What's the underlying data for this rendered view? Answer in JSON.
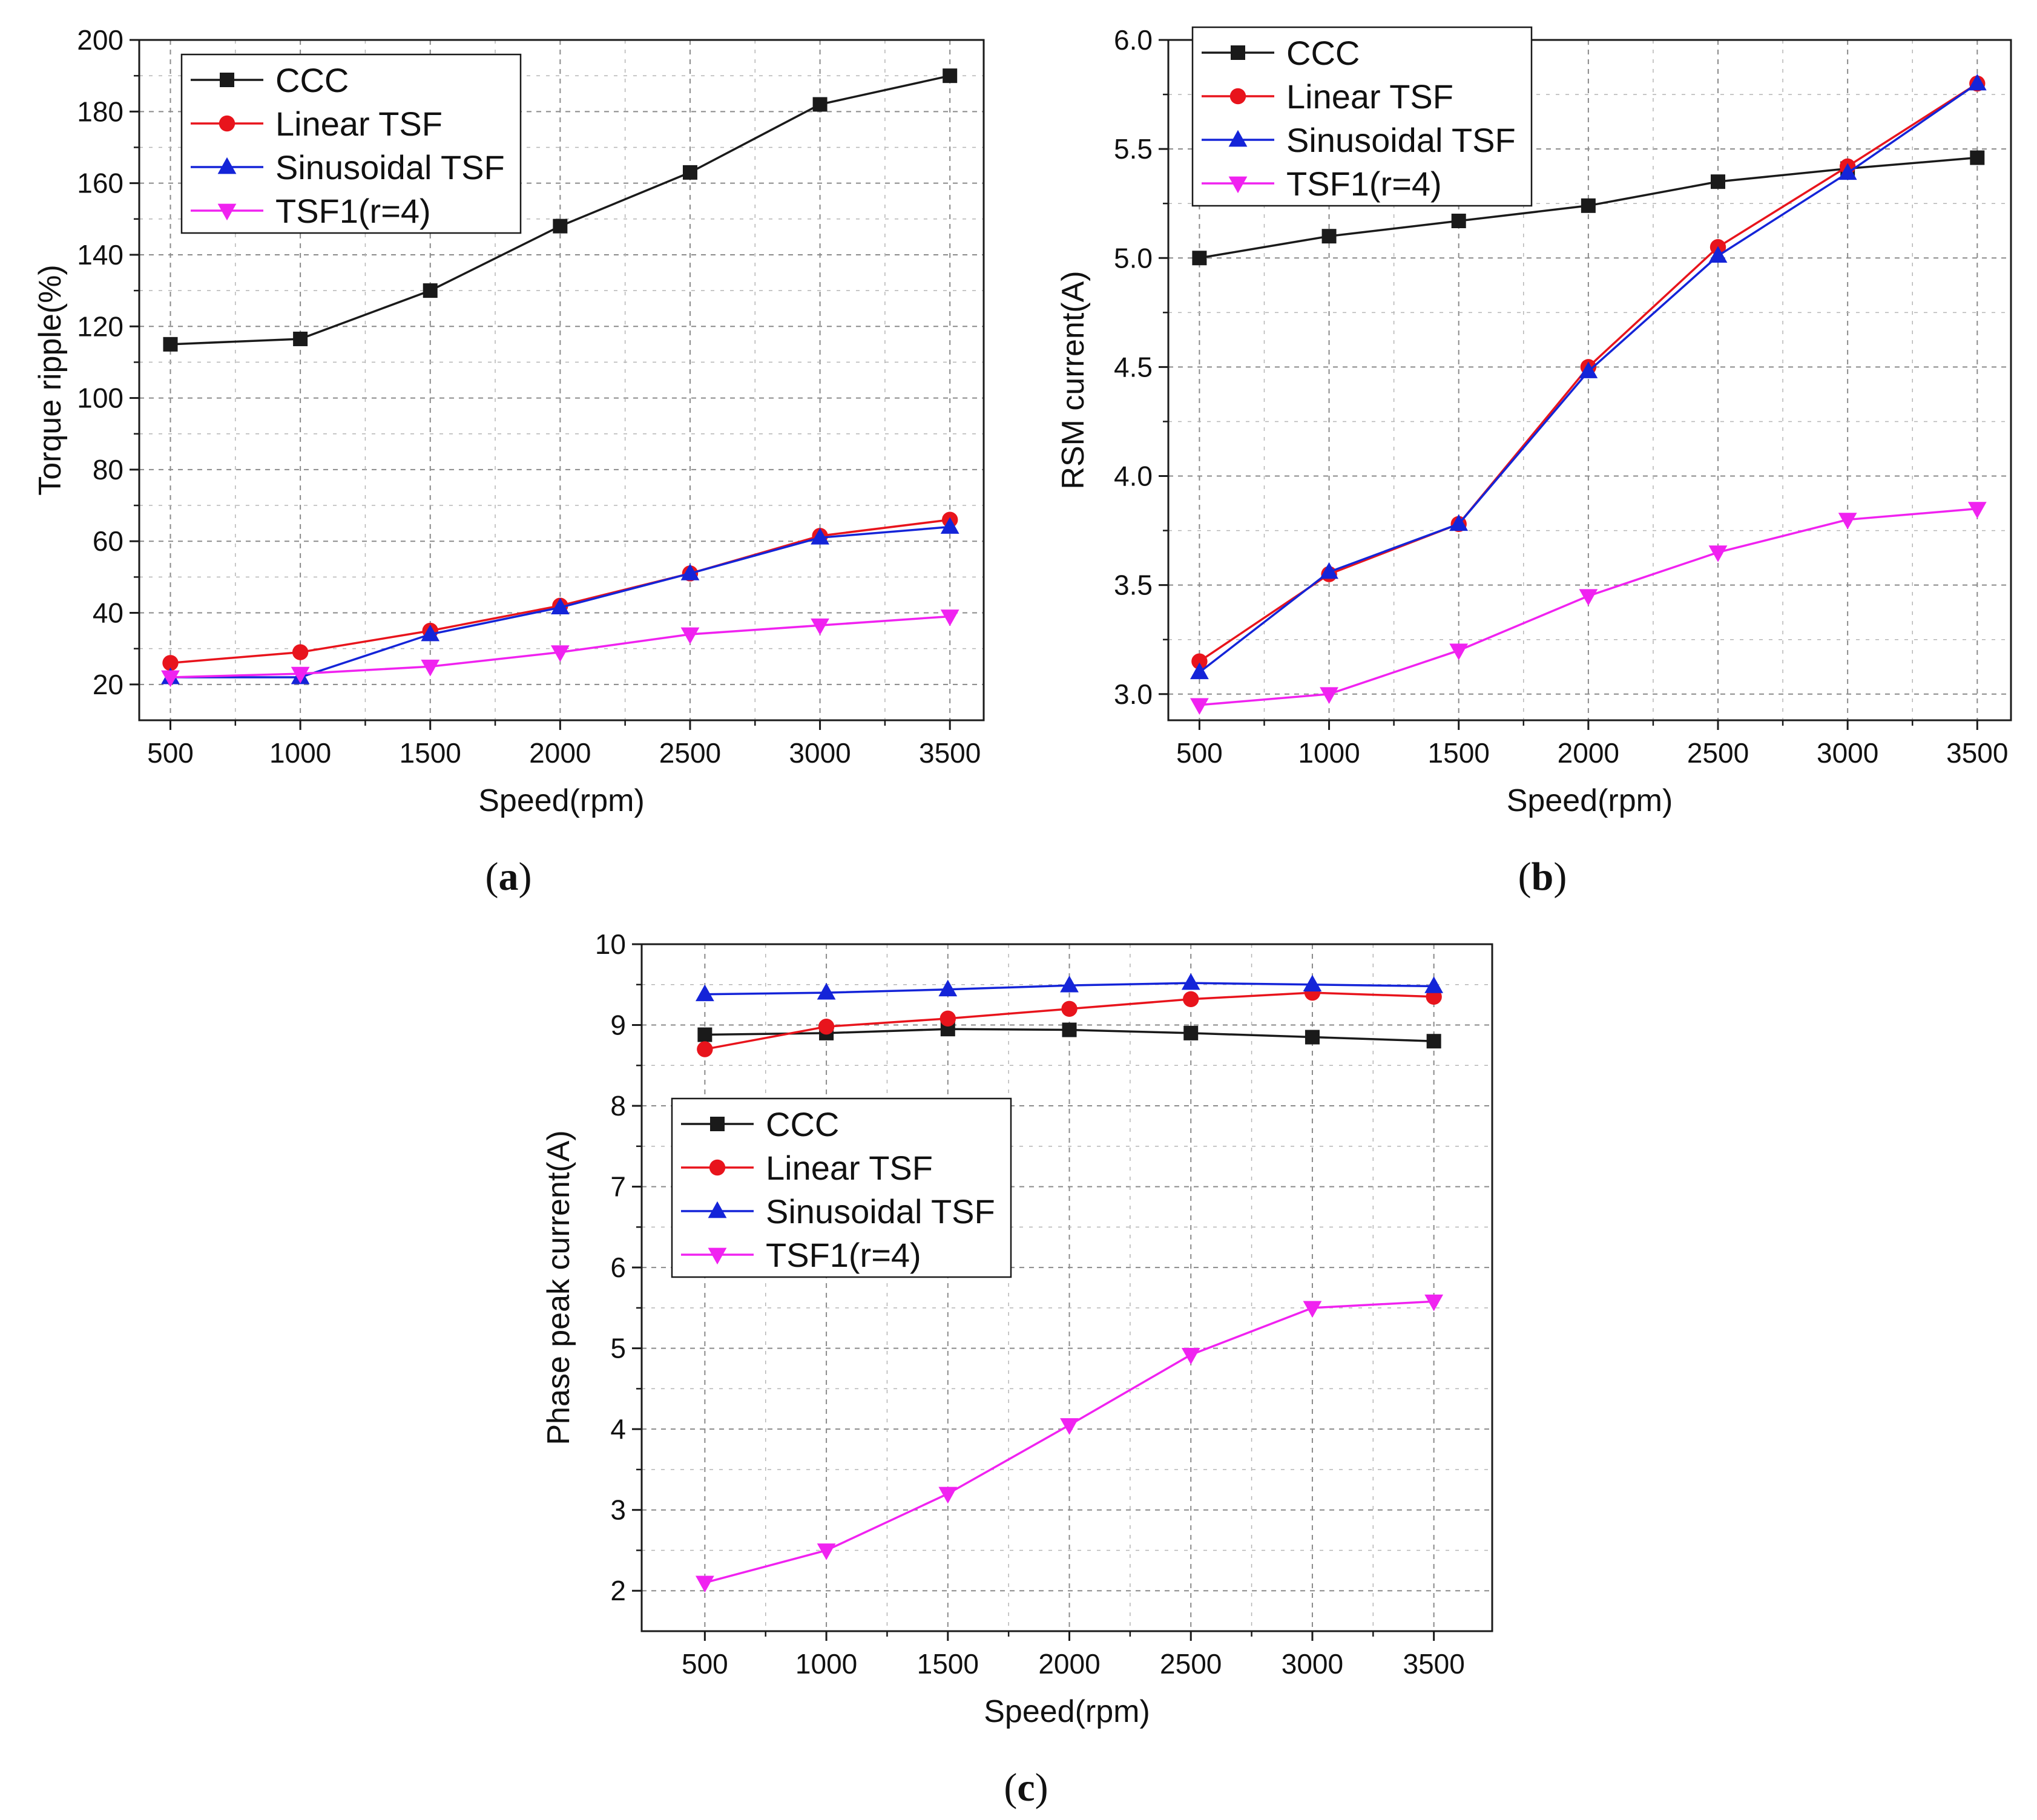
{
  "chart_data": [
    {
      "type": "line",
      "panel": "a",
      "title": "",
      "xlabel": "Speed(rpm)",
      "ylabel": "Torque ripple(%)",
      "x": [
        500,
        1000,
        1500,
        2000,
        2500,
        3000,
        3500
      ],
      "xticks": [
        500,
        1000,
        1500,
        2000,
        2500,
        3000,
        3500
      ],
      "xlim": [
        380,
        3630
      ],
      "yticks": [
        20,
        40,
        60,
        80,
        100,
        120,
        140,
        160,
        180,
        200
      ],
      "ylim": [
        10,
        200
      ],
      "grid": true,
      "legend_position": "top-left",
      "series": [
        {
          "name": "CCC",
          "color": "#1a1a1a",
          "marker": "square",
          "values": [
            115,
            116.5,
            130,
            148,
            163,
            182,
            190
          ]
        },
        {
          "name": "Linear TSF",
          "color": "#e8141c",
          "marker": "circle",
          "values": [
            26,
            29,
            35,
            42,
            51,
            61.5,
            66
          ]
        },
        {
          "name": "Sinusoidal TSF",
          "color": "#1424d8",
          "marker": "triangle-up",
          "values": [
            22,
            22,
            34,
            41.5,
            51,
            61,
            64
          ]
        },
        {
          "name": "TSF1(r=4)",
          "color": "#f022f0",
          "marker": "triangle-down",
          "values": [
            22,
            23,
            25,
            29,
            34,
            36.5,
            39
          ]
        }
      ]
    },
    {
      "type": "line",
      "panel": "b",
      "title": "",
      "xlabel": "Speed(rpm)",
      "ylabel": "RSM current(A)",
      "x": [
        500,
        1000,
        1500,
        2000,
        2500,
        3000,
        3500
      ],
      "xticks": [
        500,
        1000,
        1500,
        2000,
        2500,
        3000,
        3500
      ],
      "xlim": [
        380,
        3630
      ],
      "yticks": [
        3.0,
        3.5,
        4.0,
        4.5,
        5.0,
        5.5,
        6.0
      ],
      "ytick_labels": [
        "3.0",
        "3.5",
        "4.0",
        "4.5",
        "5.0",
        "5.5",
        "6.0"
      ],
      "ylim": [
        2.88,
        6.0
      ],
      "grid": true,
      "legend_position": "top-left",
      "series": [
        {
          "name": "CCC",
          "color": "#1a1a1a",
          "marker": "square",
          "values": [
            5.0,
            5.1,
            5.17,
            5.24,
            5.35,
            5.41,
            5.46
          ]
        },
        {
          "name": "Linear TSF",
          "color": "#e8141c",
          "marker": "circle",
          "values": [
            3.15,
            3.55,
            3.78,
            4.5,
            5.05,
            5.42,
            5.8
          ]
        },
        {
          "name": "Sinusoidal TSF",
          "color": "#1424d8",
          "marker": "triangle-up",
          "values": [
            3.1,
            3.56,
            3.78,
            4.48,
            5.01,
            5.39,
            5.8
          ]
        },
        {
          "name": "TSF1(r=4)",
          "color": "#f022f0",
          "marker": "triangle-down",
          "values": [
            2.95,
            3.0,
            3.2,
            3.45,
            3.65,
            3.8,
            3.85
          ]
        }
      ]
    },
    {
      "type": "line",
      "panel": "c",
      "title": "",
      "xlabel": "Speed(rpm)",
      "ylabel": "Phase peak current(A)",
      "x": [
        500,
        1000,
        1500,
        2000,
        2500,
        3000,
        3500
      ],
      "xticks": [
        500,
        1000,
        1500,
        2000,
        2500,
        3000,
        3500
      ],
      "xlim": [
        240,
        3740
      ],
      "yticks": [
        2,
        3,
        4,
        5,
        6,
        7,
        8,
        9,
        10
      ],
      "ylim": [
        1.5,
        10
      ],
      "grid": true,
      "legend_position": "middle-left",
      "series": [
        {
          "name": "CCC",
          "color": "#1a1a1a",
          "marker": "square",
          "values": [
            8.88,
            8.9,
            8.95,
            8.94,
            8.9,
            8.85,
            8.8
          ]
        },
        {
          "name": "Linear TSF",
          "color": "#e8141c",
          "marker": "circle",
          "values": [
            8.7,
            8.98,
            9.08,
            9.2,
            9.32,
            9.4,
            9.35
          ]
        },
        {
          "name": "Sinusoidal TSF",
          "color": "#1424d8",
          "marker": "triangle-up",
          "values": [
            9.38,
            9.4,
            9.44,
            9.49,
            9.52,
            9.5,
            9.48
          ]
        },
        {
          "name": "TSF1(r=4)",
          "color": "#f022f0",
          "marker": "triangle-down",
          "values": [
            2.1,
            2.5,
            3.2,
            4.05,
            4.92,
            5.5,
            5.58
          ]
        }
      ]
    }
  ],
  "captions": {
    "a": {
      "open": "(",
      "letter": "a",
      "close": ")"
    },
    "b": {
      "open": "(",
      "letter": "b",
      "close": ")"
    },
    "c": {
      "open": "(",
      "letter": "c",
      "close": ")"
    }
  }
}
